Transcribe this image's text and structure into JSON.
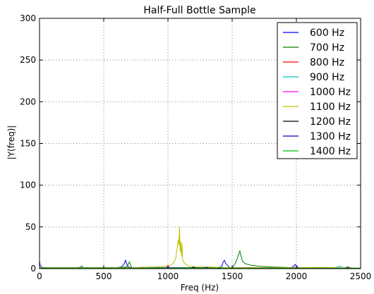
{
  "chart_data": {
    "type": "line",
    "title": "Half-Full Bottle Sample",
    "xlabel": "Freq (Hz)",
    "ylabel": "|Y(freq)|",
    "xlim": [
      0,
      2500
    ],
    "ylim": [
      0,
      300
    ],
    "xticks": [
      0,
      500,
      1000,
      1500,
      2000,
      2500
    ],
    "yticks": [
      0,
      50,
      100,
      150,
      200,
      250,
      300
    ],
    "grid": true,
    "legend_position": "top-right",
    "series": [
      {
        "name": "600 Hz",
        "color": "#0000ff",
        "x": [
          0,
          5,
          20,
          60,
          300,
          600,
          640,
          660,
          670,
          680,
          690,
          720,
          1400,
          1420,
          1430,
          1440,
          1450,
          1470,
          1480,
          1960,
          1980,
          1990,
          2000,
          2020,
          2500
        ],
        "y": [
          9,
          4,
          1.5,
          1,
          1,
          1,
          2,
          6,
          10,
          5,
          2,
          1,
          1,
          3,
          8,
          10,
          6,
          3,
          1,
          1,
          3,
          5,
          3,
          1,
          0.5
        ]
      },
      {
        "name": "700 Hz",
        "color": "#008000",
        "x": [
          0,
          300,
          320,
          330,
          340,
          600,
          680,
          700,
          710,
          720,
          1500,
          1520,
          1540,
          1550,
          1560,
          1570,
          1580,
          1600,
          1650,
          1700,
          1800,
          2000,
          2500
        ],
        "y": [
          1,
          1,
          2,
          3,
          1,
          1,
          2,
          8,
          4,
          1,
          1,
          5,
          12,
          17,
          21,
          15,
          9,
          6,
          4,
          3,
          2,
          1,
          0.5
        ]
      },
      {
        "name": "800 Hz",
        "color": "#ff0000",
        "x": [
          0,
          780,
          800,
          820,
          1600,
          1620,
          2500
        ],
        "y": [
          0.5,
          0.5,
          2,
          0.5,
          0.5,
          1,
          0.3
        ]
      },
      {
        "name": "900 Hz",
        "color": "#00bfbf",
        "x": [
          0,
          880,
          900,
          920,
          2300,
          2320,
          2340,
          2360,
          2500
        ],
        "y": [
          0.5,
          0.5,
          2,
          0.5,
          0.5,
          2,
          3,
          1,
          0.3
        ]
      },
      {
        "name": "1000 Hz",
        "color": "#ff00ff",
        "x": [
          0,
          980,
          1000,
          1020,
          1980,
          2000,
          2020,
          2500
        ],
        "y": [
          0.5,
          0.5,
          3,
          0.5,
          0.5,
          2,
          0.5,
          0.3
        ]
      },
      {
        "name": "1100 Hz",
        "color": "#bfbf00",
        "x": [
          0,
          700,
          900,
          1000,
          1040,
          1060,
          1070,
          1080,
          1085,
          1090,
          1095,
          1100,
          1105,
          1110,
          1115,
          1120,
          1140,
          1160,
          1200,
          1300,
          1400,
          1500,
          1700,
          2000,
          2200,
          2500
        ],
        "y": [
          1,
          1,
          2,
          3,
          6,
          12,
          22,
          35,
          28,
          50,
          20,
          33,
          15,
          30,
          10,
          8,
          5,
          3,
          2,
          2,
          1.5,
          1,
          1,
          1,
          1.5,
          0.5
        ]
      },
      {
        "name": "1200 Hz",
        "color": "#000000",
        "x": [
          0,
          1180,
          1200,
          1220,
          2380,
          2400,
          2420,
          2500
        ],
        "y": [
          0.5,
          0.5,
          2,
          0.5,
          0.5,
          2,
          0.5,
          0.3
        ]
      },
      {
        "name": "1300 Hz",
        "color": "#0000bf",
        "x": [
          0,
          1280,
          1300,
          1320,
          2500
        ],
        "y": [
          0.5,
          0.5,
          1.5,
          0.5,
          0.3
        ]
      },
      {
        "name": "1400 Hz",
        "color": "#00bf00",
        "x": [
          0,
          1380,
          1400,
          1420,
          2500
        ],
        "y": [
          0.5,
          0.5,
          1.5,
          0.5,
          0.3
        ]
      }
    ]
  }
}
